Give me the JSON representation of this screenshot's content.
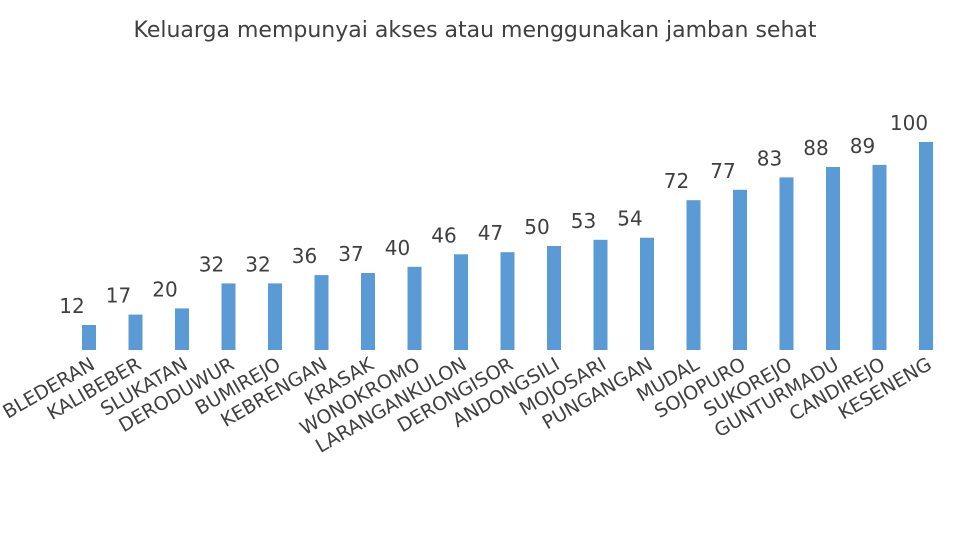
{
  "chart_data": {
    "type": "bar",
    "title": "Keluarga mempunyai akses atau menggunakan jamban sehat",
    "xlabel": "",
    "ylabel": "",
    "ylim": [
      0,
      100
    ],
    "grid": false,
    "legend": "none",
    "colors": {
      "bar": "#5b9bd5",
      "text": "#404040"
    },
    "categories": [
      "BLEDERAN",
      "KALIBEBER",
      "SLUKATAN",
      "DERODUWUR",
      "BUMIREJO",
      "KEBRENGAN",
      "KRASAK",
      "WONOKROMO",
      "LARANGANKULON",
      "DERONGISOR",
      "ANDONGSILI",
      "MOJOSARI",
      "PUNGANGAN",
      "MUDAL",
      "SOJOPURO",
      "SUKOREJO",
      "GUNTURMADU",
      "CANDIREJO",
      "KESENENG"
    ],
    "values": [
      12,
      17,
      20,
      32,
      32,
      36,
      37,
      40,
      46,
      47,
      50,
      53,
      54,
      72,
      77,
      83,
      88,
      89,
      100
    ]
  }
}
